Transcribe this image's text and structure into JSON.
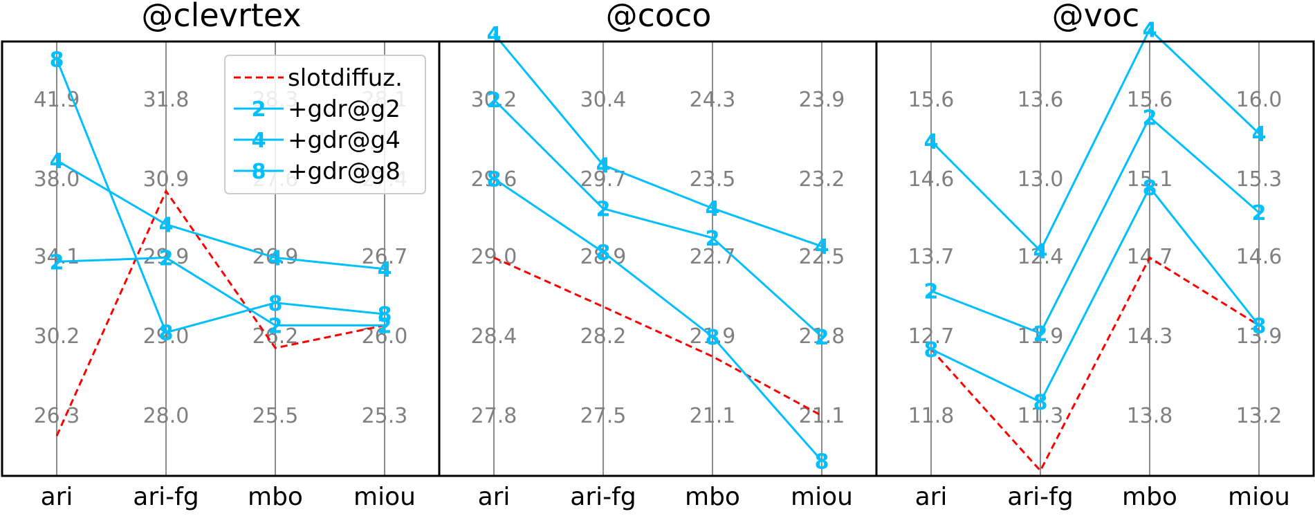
{
  "chart_data": {
    "type": "line",
    "categories": [
      "ari",
      "ari-fg",
      "mbo",
      "miou"
    ],
    "legend": {
      "placement": "top-right of first panel",
      "entries": [
        {
          "label": "slotdiffuz.",
          "color": "#ff0000",
          "style": "dashed",
          "marker": ""
        },
        {
          "label": "+gdr@g2",
          "color": "#00bfff",
          "style": "solid",
          "marker": "2"
        },
        {
          "label": "+gdr@g4",
          "color": "#00bfff",
          "style": "solid",
          "marker": "4"
        },
        {
          "label": "+gdr@g8",
          "color": "#00bfff",
          "style": "solid",
          "marker": "8"
        }
      ]
    },
    "panels": [
      {
        "title": "@clevrtex",
        "axis_ticks": [
          [
            "41.9",
            "38.0",
            "34.1",
            "30.2",
            "26.3"
          ],
          [
            "31.8",
            "30.9",
            "29.9",
            "29.0",
            "28.0"
          ],
          [
            "28.3",
            "27.6",
            "26.9",
            "26.2",
            "25.5"
          ],
          [
            "28.1",
            "27.4",
            "26.7",
            "26.0",
            "25.3"
          ]
        ],
        "series": [
          {
            "key": "slotdiffuz.",
            "values": [
              25.3,
              30.7,
              26.1,
              26.1
            ]
          },
          {
            "key": "+gdr@g2",
            "values": [
              33.9,
              29.9,
              26.3,
              26.1
            ]
          },
          {
            "key": "+gdr@g4",
            "values": [
              38.9,
              30.3,
              26.9,
              26.6
            ]
          },
          {
            "key": "+gdr@g8",
            "values": [
              43.9,
              29.0,
              26.5,
              26.2
            ]
          }
        ]
      },
      {
        "title": "@coco",
        "axis_ticks": [
          [
            "30.2",
            "29.6",
            "29.0",
            "28.4",
            "27.8"
          ],
          [
            "30.4",
            "29.7",
            "28.9",
            "28.2",
            "27.5"
          ],
          [
            "24.3",
            "23.5",
            "22.7",
            "21.9",
            "21.1"
          ],
          [
            "23.9",
            "23.2",
            "22.5",
            "21.8",
            "21.1"
          ]
        ],
        "series": [
          {
            "key": "slotdiffuz.",
            "values": [
              29.0,
              28.5,
              21.7,
              21.1
            ]
          },
          {
            "key": "+gdr@g2",
            "values": [
              30.2,
              29.4,
              22.9,
              21.8
            ]
          },
          {
            "key": "+gdr@g4",
            "values": [
              30.7,
              29.8,
              23.2,
              22.6
            ]
          },
          {
            "key": "+gdr@g8",
            "values": [
              29.6,
              29.0,
              21.9,
              20.7
            ]
          }
        ]
      },
      {
        "title": "@voc",
        "axis_ticks": [
          [
            "15.6",
            "14.6",
            "13.7",
            "12.7",
            "11.8"
          ],
          [
            "13.6",
            "13.0",
            "12.4",
            "11.9",
            "11.3"
          ],
          [
            "15.6",
            "15.1",
            "14.7",
            "14.3",
            "13.8"
          ],
          [
            "16.0",
            "15.3",
            "14.6",
            "13.9",
            "13.2"
          ]
        ],
        "series": [
          {
            "key": "slotdiffuz.",
            "values": [
              12.6,
              10.9,
              14.7,
              14.0
            ]
          },
          {
            "key": "+gdr@g2",
            "values": [
              13.3,
              11.9,
              15.5,
              15.0
            ]
          },
          {
            "key": "+gdr@g4",
            "values": [
              15.1,
              12.5,
              16.0,
              15.7
            ]
          },
          {
            "key": "+gdr@g8",
            "values": [
              12.6,
              11.4,
              15.1,
              14.0
            ]
          }
        ]
      }
    ]
  }
}
